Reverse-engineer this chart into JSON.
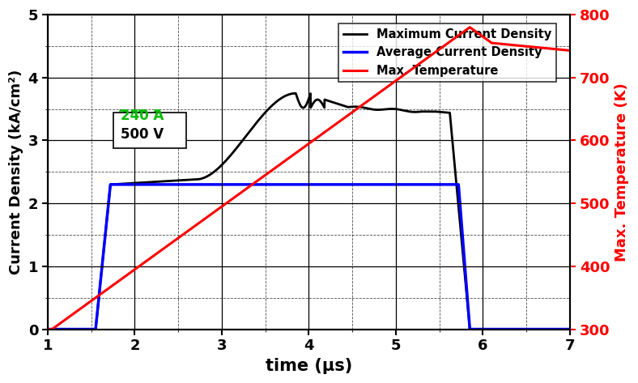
{
  "title": "",
  "xlabel": "time (μs)",
  "ylabel_left": "Current Density (kA/cm²)",
  "ylabel_right": "Max. Temperature (K)",
  "xlim": [
    1,
    7
  ],
  "ylim_left": [
    0,
    5
  ],
  "ylim_right": [
    300,
    800
  ],
  "xticks": [
    1,
    2,
    3,
    4,
    5,
    6,
    7
  ],
  "yticks_left": [
    0,
    1,
    2,
    3,
    4,
    5
  ],
  "yticks_right": [
    300,
    400,
    500,
    600,
    700,
    800
  ],
  "legend_entries": [
    "Maximum Current Density",
    "Average Current Density",
    "Max. Temperature"
  ],
  "background_color": "white"
}
